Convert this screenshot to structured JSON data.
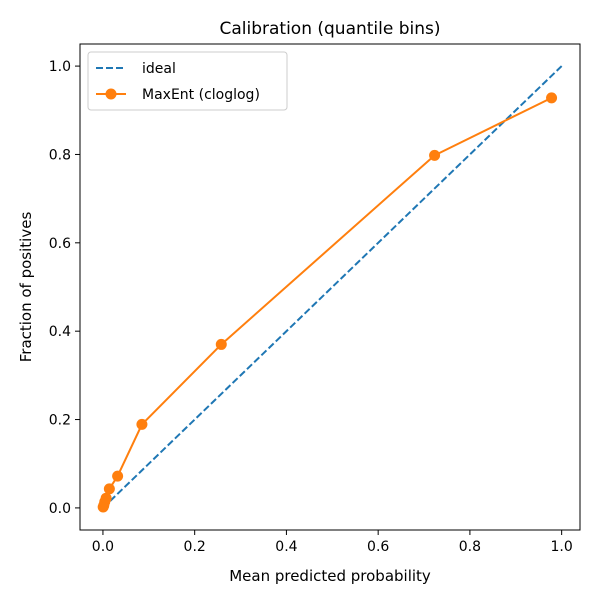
{
  "chart_data": {
    "type": "line",
    "title": "Calibration (quantile bins)",
    "xlabel": "Mean predicted probability",
    "ylabel": "Fraction of positives",
    "xlim": [
      -0.05,
      1.04
    ],
    "ylim": [
      -0.05,
      1.05
    ],
    "xticks": [
      0.0,
      0.2,
      0.4,
      0.6,
      0.8,
      1.0
    ],
    "xtick_labels": [
      "0.0",
      "0.2",
      "0.4",
      "0.6",
      "0.8",
      "1.0"
    ],
    "yticks": [
      0.0,
      0.2,
      0.4,
      0.6,
      0.8,
      1.0
    ],
    "ytick_labels": [
      "0.0",
      "0.2",
      "0.4",
      "0.6",
      "0.8",
      "1.0"
    ],
    "grid": false,
    "legend_position": "top-left",
    "series": [
      {
        "name": "ideal",
        "style": "dashed",
        "color": "#1f77b4",
        "marker": "none",
        "x": [
          0.0,
          1.0
        ],
        "y": [
          0.0,
          1.0
        ]
      },
      {
        "name": "MaxEnt (cloglog)",
        "style": "solid",
        "color": "#ff7f0e",
        "marker": "circle",
        "x": [
          0.0005,
          0.002,
          0.004,
          0.007,
          0.014,
          0.032,
          0.085,
          0.258,
          0.723,
          0.978
        ],
        "y": [
          0.002,
          0.006,
          0.014,
          0.022,
          0.043,
          0.072,
          0.189,
          0.37,
          0.798,
          0.928
        ]
      }
    ]
  }
}
